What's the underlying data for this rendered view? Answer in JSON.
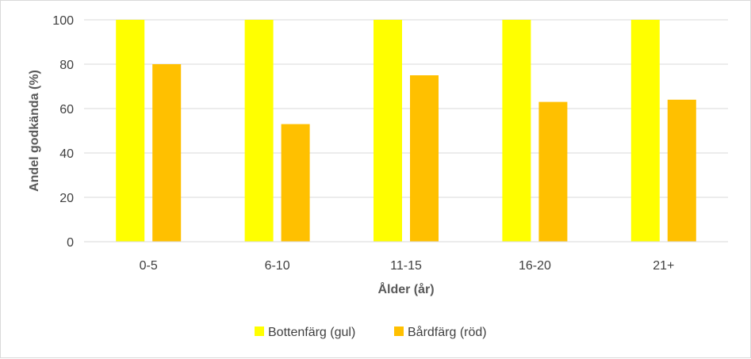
{
  "chart_data": {
    "type": "bar",
    "categories": [
      "0-5",
      "6-10",
      "11-15",
      "16-20",
      "21+"
    ],
    "series": [
      {
        "name": "Bottenfärg (gul)",
        "color": "#FFFF00",
        "values": [
          100,
          100,
          100,
          100,
          100
        ]
      },
      {
        "name": "Bårdfärg (röd)",
        "color": "#FFC000",
        "values": [
          80,
          53,
          75,
          63,
          64
        ]
      }
    ],
    "title": "",
    "xlabel": "Ålder (år)",
    "ylabel": "Andel godkända (%)",
    "ylim": [
      0,
      100
    ],
    "yticks": [
      "0",
      "20",
      "40",
      "60",
      "80",
      "100"
    ],
    "grid": true,
    "legend": "bottom-center"
  }
}
